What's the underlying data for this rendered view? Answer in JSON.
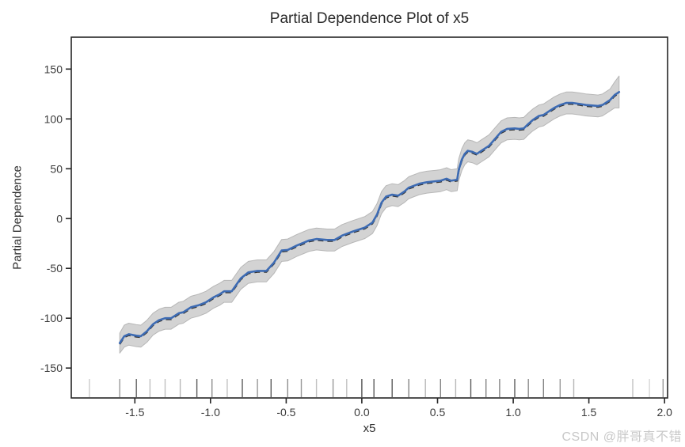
{
  "watermark": {
    "text": "CSDN @胖哥真不错"
  },
  "chart_data": {
    "type": "line",
    "title": "Partial Dependence Plot of x5",
    "xlabel": "x5",
    "ylabel": "Partial Dependence",
    "xlim": [
      -1.92,
      2.02
    ],
    "ylim": [
      -180,
      182
    ],
    "grid": false,
    "legend": "none",
    "xtick_values": [
      -1.5,
      -1.0,
      -0.5,
      0.0,
      0.5,
      1.0,
      1.5,
      2.0
    ],
    "xtick_labels": [
      "-1.5",
      "-1.0",
      "-0.5",
      "0.0",
      "0.5",
      "1.0",
      "1.5",
      "2.0"
    ],
    "ytick_values": [
      -150,
      -100,
      -50,
      0,
      50,
      100,
      150
    ],
    "ytick_labels": [
      "-150",
      "-100",
      "-50",
      "0",
      "50",
      "100",
      "150"
    ],
    "series": [
      {
        "name": "partial-dependence",
        "x": [
          -1.6,
          -1.57,
          -1.54,
          -1.49,
          -1.46,
          -1.42,
          -1.38,
          -1.34,
          -1.3,
          -1.26,
          -1.21,
          -1.18,
          -1.13,
          -1.08,
          -1.03,
          -0.98,
          -0.94,
          -0.91,
          -0.86,
          -0.8,
          -0.75,
          -0.69,
          -0.63,
          -0.58,
          -0.53,
          -0.49,
          -0.43,
          -0.35,
          -0.3,
          -0.23,
          -0.18,
          -0.13,
          -0.06,
          0.02,
          0.07,
          0.1,
          0.13,
          0.16,
          0.2,
          0.24,
          0.28,
          0.31,
          0.38,
          0.43,
          0.49,
          0.52,
          0.56,
          0.59,
          0.63,
          0.64,
          0.66,
          0.68,
          0.7,
          0.73,
          0.76,
          0.79,
          0.84,
          0.88,
          0.92,
          0.96,
          1.01,
          1.04,
          1.07,
          1.1,
          1.13,
          1.17,
          1.2,
          1.24,
          1.27,
          1.31,
          1.35,
          1.39,
          1.44,
          1.48,
          1.52,
          1.56,
          1.59,
          1.64,
          1.67,
          1.7
        ],
        "y": [
          -125,
          -118,
          -116,
          -117.5,
          -118,
          -113,
          -106,
          -102,
          -100,
          -100,
          -95,
          -94,
          -89,
          -87,
          -84,
          -79,
          -76,
          -73,
          -73,
          -60,
          -54,
          -52.5,
          -52.5,
          -44,
          -32,
          -31.5,
          -27,
          -22,
          -20.5,
          -21.5,
          -21.5,
          -17,
          -13,
          -9,
          -4,
          4,
          16,
          22,
          24,
          23,
          27,
          31,
          35,
          36.5,
          37.5,
          38,
          40,
          38,
          39,
          49,
          59,
          65,
          68,
          67,
          65,
          68,
          73,
          80,
          87,
          90,
          90.5,
          90,
          90.5,
          95,
          99,
          103,
          104,
          108,
          111,
          114,
          116,
          116,
          115,
          114,
          113.5,
          113,
          114,
          119,
          124,
          127
        ]
      }
    ],
    "band": {
      "name": "confidence-band",
      "halfwidth_default": 11,
      "halfwidth_overrides": {
        "0": 10,
        "78": 13,
        "79": 16
      }
    },
    "rug": {
      "x": [
        -1.8,
        -1.6,
        -1.49,
        -1.4,
        -1.3,
        -1.2,
        -1.09,
        -0.99,
        -0.89,
        -0.79,
        -0.69,
        -0.6,
        -0.49,
        -0.4,
        -0.3,
        -0.19,
        -0.1,
        0.0,
        0.08,
        0.2,
        0.31,
        0.42,
        0.52,
        0.62,
        0.72,
        0.82,
        0.91,
        1.01,
        1.1,
        1.2,
        1.31,
        1.4,
        1.79,
        1.9,
        1.99
      ],
      "alpha": [
        0.25,
        0.5,
        0.75,
        0.3,
        0.3,
        0.35,
        0.8,
        0.55,
        0.3,
        0.8,
        0.5,
        0.8,
        0.55,
        0.5,
        0.3,
        0.5,
        0.3,
        0.85,
        0.8,
        0.8,
        0.6,
        0.35,
        0.6,
        0.35,
        0.8,
        0.6,
        0.6,
        0.8,
        0.55,
        0.6,
        0.5,
        0.35,
        0.3,
        0.2,
        0.5
      ]
    },
    "colors": {
      "line": "#3d6bb3",
      "center_dash": "#333333",
      "band_fill": "#d3d3d3",
      "band_edge": "#b7b7b7",
      "axis": "#262626",
      "tick_label": "#3a3a3a",
      "rug": "#323232"
    }
  }
}
